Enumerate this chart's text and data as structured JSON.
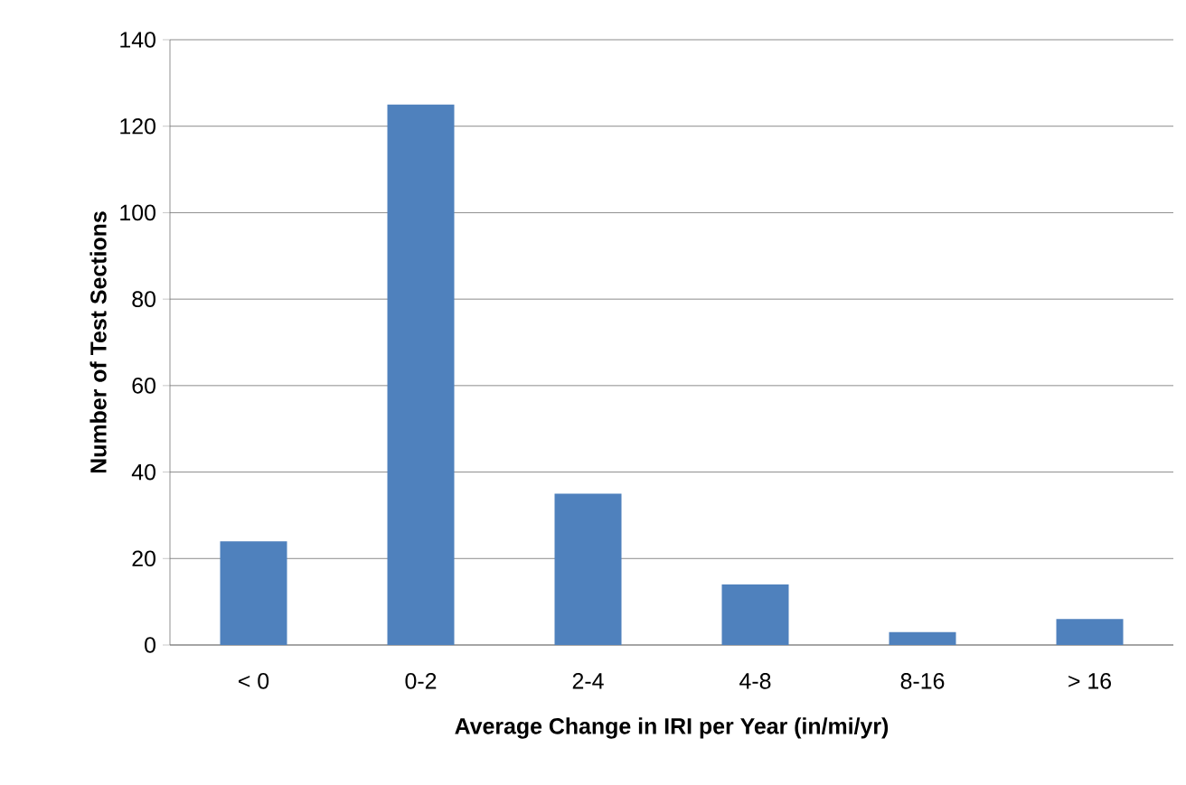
{
  "chart_data": {
    "type": "bar",
    "xlabel": "Average Change in IRI per Year (in/mi/yr)",
    "ylabel": "Number of Test Sections",
    "categories": [
      "< 0",
      "0-2",
      "2-4",
      "4-8",
      "8-16",
      "> 16"
    ],
    "values": [
      24,
      125,
      35,
      14,
      3,
      6
    ],
    "color": "#4f81bd",
    "ylim": [
      0,
      140
    ],
    "yticks": [
      0,
      20,
      40,
      60,
      80,
      100,
      120,
      140
    ],
    "grid": "y"
  }
}
